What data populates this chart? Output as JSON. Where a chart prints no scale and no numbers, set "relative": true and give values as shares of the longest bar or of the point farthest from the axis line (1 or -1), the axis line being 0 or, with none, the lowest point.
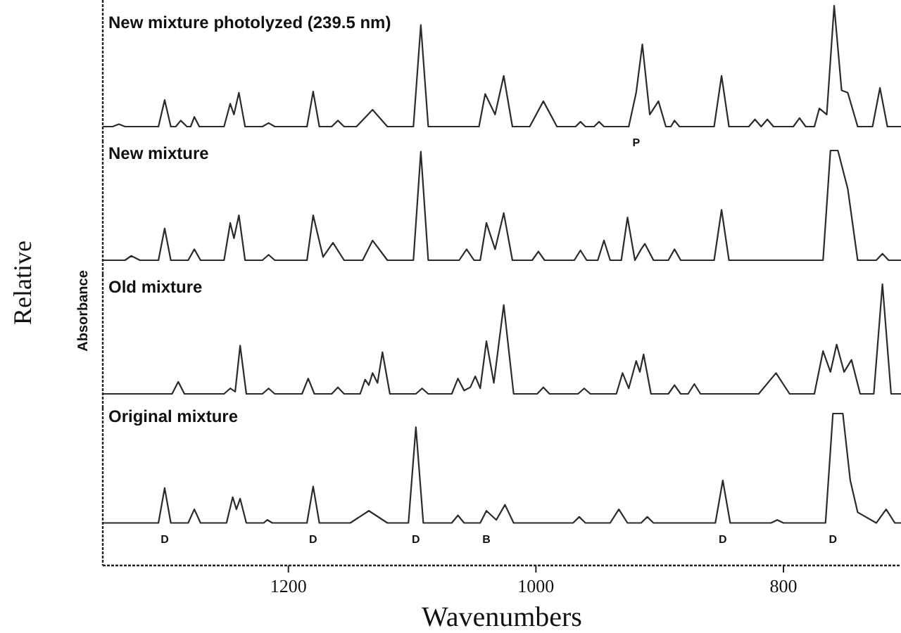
{
  "chart_data": [
    {
      "type": "line",
      "title": "New mixture photolyzed (239.5 nm)",
      "relative": true,
      "xlim": [
        1350,
        705
      ],
      "tick_labels": false,
      "annotations": [
        {
          "text": "P",
          "x": 919,
          "y": 0
        }
      ],
      "series": [
        {
          "color": "#2b2b2b",
          "x": [
            1350,
            1342,
            1337,
            1332,
            1305,
            1300,
            1295,
            1291,
            1287,
            1282,
            1279,
            1276,
            1272,
            1252,
            1247,
            1244,
            1240,
            1235,
            1221,
            1216,
            1211,
            1185,
            1180,
            1175,
            1165,
            1160,
            1155,
            1145,
            1132,
            1120,
            1099,
            1093,
            1087,
            1046,
            1041,
            1033,
            1026,
            1019,
            1005,
            994,
            983,
            968,
            964,
            960,
            953,
            949,
            945,
            925,
            919,
            914,
            908,
            901,
            895,
            891,
            888,
            884,
            856,
            850,
            844,
            828,
            823,
            818,
            813,
            808,
            792,
            787,
            782,
            775,
            771,
            765,
            759,
            753,
            748,
            740,
            728,
            722,
            716,
            705
          ],
          "values": [
            0,
            0,
            0.02,
            0,
            0,
            0.22,
            0,
            0,
            0.05,
            0,
            0,
            0.08,
            0,
            0,
            0.19,
            0.1,
            0.28,
            0,
            0,
            0.03,
            0,
            0,
            0.29,
            0,
            0,
            0.05,
            0,
            0,
            0.14,
            0,
            0,
            0.84,
            0,
            0,
            0.27,
            0.1,
            0.42,
            0,
            0,
            0.21,
            0,
            0,
            0.04,
            0,
            0,
            0.04,
            0,
            0,
            0.28,
            0.68,
            0.1,
            0.21,
            0,
            0,
            0.05,
            0,
            0,
            0.42,
            0,
            0,
            0.06,
            0,
            0.06,
            0,
            0,
            0.07,
            0,
            0,
            0.15,
            0.1,
            1,
            0.3,
            0.28,
            0,
            0,
            0.32,
            0,
            0
          ]
        }
      ]
    },
    {
      "type": "line",
      "title": "New mixture",
      "relative": true,
      "xlim": [
        1350,
        705
      ],
      "tick_labels": false,
      "series": [
        {
          "color": "#2b2b2b",
          "x": [
            1350,
            1332,
            1327,
            1320,
            1305,
            1300,
            1295,
            1281,
            1276,
            1271,
            1252,
            1247,
            1244,
            1240,
            1235,
            1221,
            1216,
            1211,
            1185,
            1180,
            1172,
            1164,
            1155,
            1140,
            1132,
            1120,
            1099,
            1093,
            1087,
            1062,
            1056,
            1050,
            1045,
            1040,
            1033,
            1026,
            1019,
            1003,
            998,
            993,
            969,
            964,
            959,
            950,
            945,
            940,
            931,
            926,
            920,
            915,
            912,
            905,
            893,
            888,
            883,
            856,
            850,
            844,
            768,
            762,
            756,
            748,
            740,
            725,
            720,
            715,
            705
          ],
          "values": [
            0,
            0,
            0.04,
            0,
            0,
            0.29,
            0,
            0,
            0.1,
            0,
            0,
            0.34,
            0.2,
            0.41,
            0,
            0,
            0.05,
            0,
            0,
            0.41,
            0.03,
            0.16,
            0,
            0,
            0.18,
            0,
            0,
            0.99,
            0,
            0,
            0.1,
            0,
            0,
            0.34,
            0.1,
            0.43,
            0,
            0,
            0.08,
            0,
            0,
            0.09,
            0,
            0,
            0.18,
            0,
            0,
            0.39,
            0,
            0.1,
            0.15,
            0,
            0,
            0.1,
            0,
            0,
            0.46,
            0,
            0,
            1,
            1,
            0.65,
            0,
            0,
            0.06,
            0,
            0
          ]
        }
      ]
    },
    {
      "type": "line",
      "title": "Old mixture",
      "relative": true,
      "xlim": [
        1350,
        705
      ],
      "tick_labels": false,
      "series": [
        {
          "color": "#2b2b2b",
          "x": [
            1350,
            1294,
            1289,
            1284,
            1252,
            1247,
            1243,
            1239,
            1234,
            1221,
            1216,
            1211,
            1189,
            1184,
            1179,
            1165,
            1160,
            1155,
            1142,
            1138,
            1135,
            1132,
            1128,
            1124,
            1118,
            1097,
            1092,
            1087,
            1068,
            1063,
            1058,
            1053,
            1049,
            1045,
            1040,
            1034,
            1026,
            1018,
            999,
            994,
            989,
            966,
            961,
            956,
            935,
            930,
            925,
            919,
            916,
            913,
            907,
            893,
            888,
            883,
            877,
            872,
            867,
            820,
            806,
            795,
            775,
            768,
            762,
            757,
            751,
            745,
            738,
            727,
            720,
            713,
            705
          ],
          "values": [
            0,
            0,
            0.11,
            0,
            0,
            0.05,
            0.02,
            0.44,
            0,
            0,
            0.05,
            0,
            0,
            0.14,
            0,
            0,
            0.06,
            0,
            0,
            0.13,
            0.08,
            0.19,
            0.1,
            0.38,
            0,
            0,
            0.05,
            0,
            0,
            0.14,
            0.03,
            0.06,
            0.16,
            0.05,
            0.48,
            0.1,
            0.81,
            0,
            0,
            0.06,
            0,
            0,
            0.05,
            0,
            0,
            0.19,
            0.05,
            0.3,
            0.2,
            0.36,
            0,
            0,
            0.08,
            0,
            0,
            0.09,
            0,
            0,
            0.19,
            0,
            0,
            0.39,
            0.2,
            0.45,
            0.2,
            0.31,
            0,
            0,
            1,
            0,
            0
          ]
        }
      ]
    },
    {
      "type": "line",
      "title": "Original mixture",
      "relative": true,
      "xlim": [
        1350,
        705
      ],
      "xticks": [
        1200,
        1000,
        800
      ],
      "tick_labels": "x",
      "xlabel": "Wavenumbers",
      "ylabel": "Absorbance",
      "annotations": [
        "Relative",
        {
          "text": "D",
          "x": 1300,
          "y": 0.28
        },
        {
          "text": "D",
          "x": 1180,
          "y": 0.28
        },
        {
          "text": "D",
          "x": 1097,
          "y": 0.28
        },
        {
          "text": "B",
          "x": 1040,
          "y": 0.28
        },
        {
          "text": "D",
          "x": 849,
          "y": 0.28
        },
        {
          "text": "D",
          "x": 760,
          "y": 0.28
        }
      ],
      "series": [
        {
          "color": "#2b2b2b",
          "x": [
            1350,
            1305,
            1300,
            1295,
            1281,
            1276,
            1271,
            1250,
            1245,
            1242,
            1239,
            1234,
            1220,
            1217,
            1213,
            1185,
            1180,
            1175,
            1150,
            1135,
            1120,
            1103,
            1097,
            1091,
            1068,
            1063,
            1058,
            1045,
            1040,
            1032,
            1025,
            1018,
            970,
            965,
            960,
            940,
            933,
            926,
            915,
            910,
            905,
            855,
            849,
            843,
            810,
            805,
            800,
            766,
            760,
            752,
            746,
            740,
            725,
            717,
            710,
            705
          ],
          "values": [
            0.28,
            0.28,
            0.51,
            0.28,
            0.28,
            0.37,
            0.28,
            0.28,
            0.45,
            0.37,
            0.44,
            0.28,
            0.28,
            0.3,
            0.28,
            0.28,
            0.52,
            0.28,
            0.28,
            0.36,
            0.28,
            0.28,
            0.91,
            0.28,
            0.28,
            0.33,
            0.28,
            0.28,
            0.36,
            0.3,
            0.4,
            0.28,
            0.28,
            0.32,
            0.28,
            0.28,
            0.37,
            0.28,
            0.28,
            0.32,
            0.28,
            0.28,
            0.56,
            0.28,
            0.28,
            0.3,
            0.28,
            0.28,
            1,
            1,
            0.56,
            0.35,
            0.28,
            0.37,
            0.28,
            0.28
          ]
        }
      ]
    }
  ]
}
